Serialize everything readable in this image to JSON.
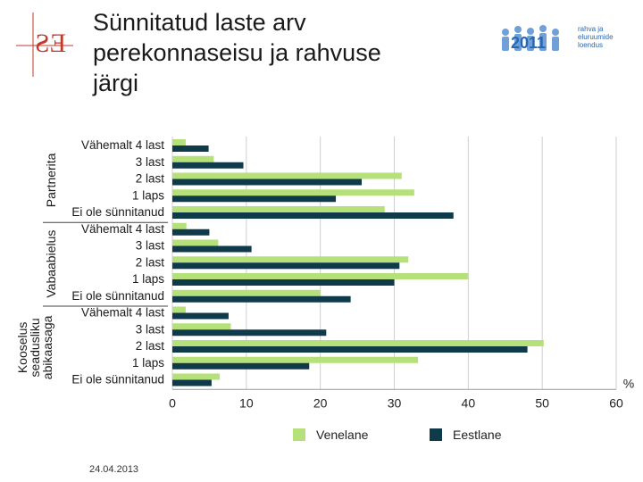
{
  "header": {
    "title_lines": [
      "Sünnitatud laste arv",
      "perekonnaseisu ja rahvuse",
      "järgi"
    ],
    "logo_text": "ES",
    "census_logo": {
      "digits": "2011",
      "lines": [
        "rahva ja",
        "eluruumide",
        "loendus"
      ]
    }
  },
  "footer": {
    "date": "24.04.2013"
  },
  "colors": {
    "venelane": "#b5e07a",
    "eestlane": "#0f3a4a",
    "grid": "#cfcfcf",
    "accent_red": "#c0392b",
    "census_blue": "#2a66b0"
  },
  "chart_data": {
    "type": "bar",
    "orientation": "horizontal",
    "x_unit": "%",
    "xlim": [
      0,
      60
    ],
    "x_ticks": [
      0,
      10,
      20,
      30,
      40,
      50,
      60
    ],
    "grid": true,
    "legend_position": "bottom",
    "groups": [
      {
        "name": "Partnerita",
        "categories": [
          "Vähemalt 4 last",
          "3 last",
          "2 last",
          "1 laps",
          "Ei ole sünnitanud"
        ],
        "series": [
          {
            "name": "Venelane",
            "values": [
              1.8,
              5.6,
              31.0,
              32.7,
              28.7
            ]
          },
          {
            "name": "Eestlane",
            "values": [
              4.9,
              9.6,
              25.6,
              22.1,
              38.0
            ]
          }
        ]
      },
      {
        "name": "Vabaabielus",
        "categories": [
          "Vähemalt 4 last",
          "3 last",
          "2 last",
          "1 laps",
          "Ei ole sünnitanud"
        ],
        "series": [
          {
            "name": "Venelane",
            "values": [
              1.9,
              6.2,
              31.9,
              40.0,
              20.0
            ]
          },
          {
            "name": "Eestlane",
            "values": [
              5.0,
              10.7,
              30.7,
              30.0,
              24.1
            ]
          }
        ]
      },
      {
        "name": "Kooselus seadusliku abikaasaga",
        "name_lines": [
          "Kooselus",
          "seadusliku",
          "abikaasaga"
        ],
        "categories": [
          "Vähemalt 4 last",
          "3 last",
          "2 last",
          "1 laps",
          "Ei ole sünnitanud"
        ],
        "series": [
          {
            "name": "Venelane",
            "values": [
              1.8,
              7.9,
              50.2,
              33.2,
              6.4
            ]
          },
          {
            "name": "Eestlane",
            "values": [
              7.6,
              20.8,
              48.0,
              18.5,
              5.3
            ]
          }
        ]
      }
    ],
    "legend": [
      "Venelane",
      "Eestlane"
    ]
  }
}
